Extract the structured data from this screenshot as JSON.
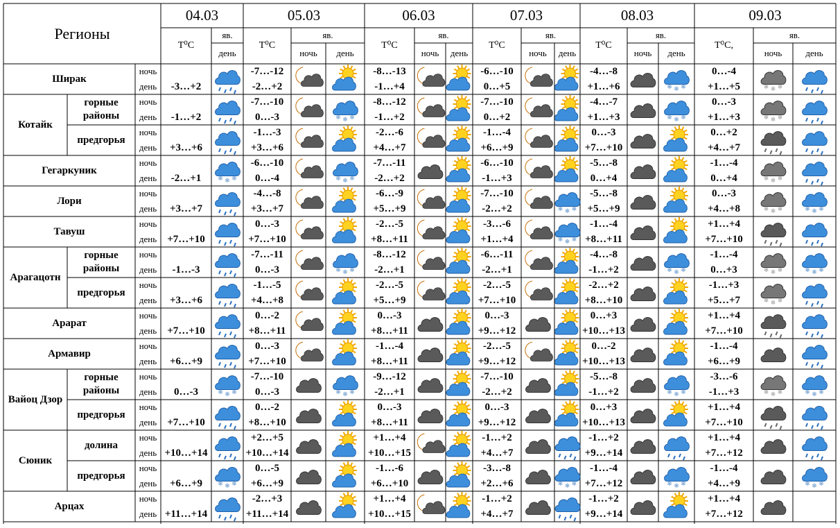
{
  "header": {
    "regions": "Регионы",
    "period_labels": [
      "ночь",
      "день"
    ],
    "columns": [
      {
        "date": "04.03",
        "temp": "T⁰C",
        "icon": "яв.",
        "periods": [
          "день"
        ]
      },
      {
        "date": "05.03",
        "temp": "T⁰C",
        "icon": "яв.",
        "periods": [
          "ночь",
          "день"
        ]
      },
      {
        "date": "06.03",
        "temp": "T⁰C",
        "icon": "яв.",
        "periods": [
          "ночь",
          "день"
        ]
      },
      {
        "date": "07.03",
        "temp": "T⁰C",
        "icon": "яв.",
        "periods": [
          "ночь",
          "день"
        ]
      },
      {
        "date": "08.03",
        "temp": "T⁰C",
        "icon": "яв.",
        "periods": [
          "ночь",
          "день"
        ]
      },
      {
        "date": "09.03",
        "temp": "T⁰C,",
        "icon": "яв.",
        "periods": [
          "ночь",
          "день"
        ]
      }
    ]
  },
  "regions": [
    {
      "name": "Ширак",
      "parts": [
        {
          "t": "-3…+2",
          "days": [
            [
              "-7…-12",
              "-2…+2"
            ],
            [
              "-8…-13",
              "-1…+4"
            ],
            [
              "-6…-10",
              "0…+5"
            ],
            [
              "-4…-8",
              "+1…+6"
            ],
            [
              "0…-4",
              "+1…+5"
            ]
          ]
        }
      ]
    },
    {
      "name": "Котайк",
      "parts": [
        {
          "name": "горные районы",
          "t": "-1…+2",
          "days": [
            [
              "-7…-10",
              "0…-3"
            ],
            [
              "-8…-12",
              "-1…+2"
            ],
            [
              "-7…-10",
              "0…+2"
            ],
            [
              "-4…-7",
              "+1…+3"
            ],
            [
              "0…-3",
              "+1…+3"
            ]
          ]
        },
        {
          "name": "предгорья",
          "t": "+3…+6",
          "days": [
            [
              "-1…-3",
              "+3…+6"
            ],
            [
              "-2…-6",
              "+4…+7"
            ],
            [
              "-1…-4",
              "+6…+9"
            ],
            [
              "0…-3",
              "+7…+10"
            ],
            [
              "0…+2",
              "+4…+7"
            ]
          ]
        }
      ]
    },
    {
      "name": "Гегаркуник",
      "parts": [
        {
          "t": "-2…+1",
          "days": [
            [
              "-6…-10",
              "0…-4"
            ],
            [
              "-7…-11",
              "-2…+2"
            ],
            [
              "-6…-10",
              "-1…+3"
            ],
            [
              "-5…-8",
              "0…+4"
            ],
            [
              "-1…-4",
              "0…+4"
            ]
          ]
        }
      ]
    },
    {
      "name": "Лори",
      "parts": [
        {
          "t": "+3…+7",
          "days": [
            [
              "-4…-8",
              "+3…+7"
            ],
            [
              "-6…-9",
              "+5…+9"
            ],
            [
              "-7…-10",
              "-2…+2"
            ],
            [
              "-5…-8",
              "+5…+9"
            ],
            [
              "0…-3",
              "+4…+8"
            ]
          ]
        }
      ]
    },
    {
      "name": "Тавуш",
      "parts": [
        {
          "t": "+7…+10",
          "days": [
            [
              "0…-3",
              "+7…+10"
            ],
            [
              "-2…-5",
              "+8…+11"
            ],
            [
              "-3…-6",
              "+1…+4"
            ],
            [
              "-1…-4",
              "+8…+11"
            ],
            [
              "+1…+4",
              "+7…+10"
            ]
          ]
        }
      ]
    },
    {
      "name": "Арагацотн",
      "parts": [
        {
          "name": "горные районы",
          "t": "-1…-3",
          "days": [
            [
              "-7…-11",
              "0…-3"
            ],
            [
              "-8…-12",
              "-2…+1"
            ],
            [
              "-6…-11",
              "-2…+1"
            ],
            [
              "-4…-8",
              "-1…+2"
            ],
            [
              "-1…-4",
              "0…+3"
            ]
          ]
        },
        {
          "name": "предгорья",
          "t": "+3…+6",
          "days": [
            [
              "-1…-5",
              "+4…+8"
            ],
            [
              "-2…-5",
              "+5…+9"
            ],
            [
              "-2…-5",
              "+7…+10"
            ],
            [
              "-2…+2",
              "+8…+10"
            ],
            [
              "-1…+3",
              "+5…+7"
            ]
          ]
        }
      ]
    },
    {
      "name": "Арарат",
      "parts": [
        {
          "t": "+7…+10",
          "days": [
            [
              "0…-2",
              "+8…+11"
            ],
            [
              "0…-3",
              "+8…+11"
            ],
            [
              "0…-3",
              "+9…+12"
            ],
            [
              "0…+3",
              "+10…+13"
            ],
            [
              "+1…+4",
              "+7…+10"
            ]
          ]
        }
      ]
    },
    {
      "name": "Армавир",
      "parts": [
        {
          "t": "+6…+9",
          "days": [
            [
              "0…-3",
              "+7…+10"
            ],
            [
              "-1…-4",
              "+8…+11"
            ],
            [
              "-2…-5",
              "+9…+12"
            ],
            [
              "0…-2",
              "+10…+13"
            ],
            [
              "-1…-4",
              "+6…+9"
            ]
          ]
        }
      ]
    },
    {
      "name": "Вайоц Дзор",
      "parts": [
        {
          "name": "горные районы",
          "t": "0…-3",
          "days": [
            [
              "-7…-10",
              "0…-3"
            ],
            [
              "-9…-12",
              "-2…+1"
            ],
            [
              "-7…-10",
              "-2…+2"
            ],
            [
              "-5…-8",
              "-1…+2"
            ],
            [
              "-3…-6",
              "-1…+3"
            ]
          ]
        },
        {
          "name": "предгорья",
          "t": "+7…+10",
          "days": [
            [
              "0…-2",
              "+8…+10"
            ],
            [
              "0…-3",
              "+8…+11"
            ],
            [
              "0…-3",
              "+9…+12"
            ],
            [
              "0…+3",
              "+10…+13"
            ],
            [
              "+1…+4",
              "+7…+10"
            ]
          ]
        }
      ]
    },
    {
      "name": "Сюник",
      "parts": [
        {
          "name": "долина",
          "t": "+10…+14",
          "days": [
            [
              "+2…+5",
              "+10…+14"
            ],
            [
              "+1…+4",
              "+10…+15"
            ],
            [
              "-1…+2",
              "+4…+7"
            ],
            [
              "-1…+2",
              "+9…+14"
            ],
            [
              "+1…+4",
              "+7…+12"
            ]
          ]
        },
        {
          "name": "предгорья",
          "t": "+6…+9",
          "days": [
            [
              "0…-5",
              "+6…+9"
            ],
            [
              "-1…-6",
              "+6…+10"
            ],
            [
              "-3…-8",
              "+2…+6"
            ],
            [
              "-1…-4",
              "+7…+12"
            ],
            [
              "-1…-4",
              "+4…+9"
            ]
          ]
        }
      ]
    },
    {
      "name": "Арцах",
      "parts": [
        {
          "t": "+11…+14",
          "days": [
            [
              "-2…+3",
              "+11…+14"
            ],
            [
              "+1…+4",
              "+10…+15"
            ],
            [
              "-1…+2",
              "+4…+7"
            ],
            [
              "-1…+2",
              "+9…+14"
            ],
            [
              "+1…+4",
              "+7…+12"
            ]
          ]
        }
      ]
    }
  ]
}
